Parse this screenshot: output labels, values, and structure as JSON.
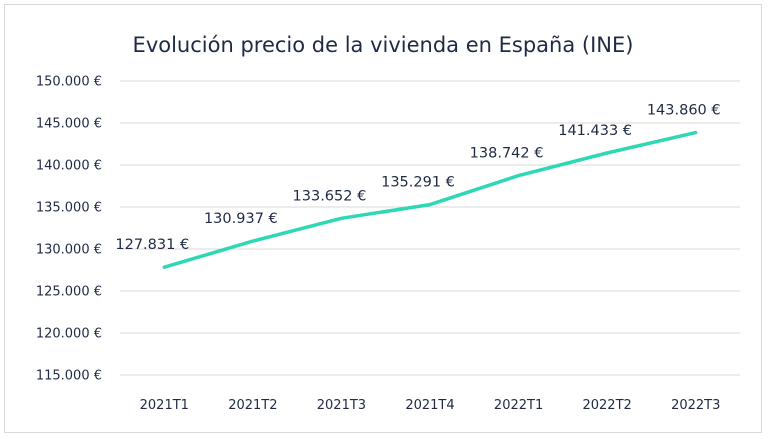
{
  "chart_data": {
    "type": "line",
    "title": "Evolución precio de la vivienda en España (INE)",
    "xlabel": "",
    "ylabel": "",
    "categories": [
      "2021T1",
      "2021T2",
      "2021T3",
      "2021T4",
      "2022T1",
      "2022T2",
      "2022T3"
    ],
    "series": [
      {
        "values": [
          127831,
          130937,
          133652,
          135291,
          138742,
          141433,
          143860
        ],
        "data_labels": [
          "127.831 €",
          "130.937 €",
          "133.652 €",
          "135.291 €",
          "138.742 €",
          "141.433 €",
          "143.860 €"
        ],
        "color": "#2ed8b4"
      }
    ],
    "ylim": [
      115000,
      150000
    ],
    "yticks": [
      150000,
      145000,
      140000,
      135000,
      130000,
      125000,
      120000,
      115000
    ],
    "ytick_labels": [
      "150.000 €",
      "145.000 €",
      "140.000 €",
      "135.000 €",
      "130.000 €",
      "125.000 €",
      "120.000 €",
      "115.000 €"
    ],
    "grid": true,
    "legend": "none",
    "colors": {
      "line": "#2ed8b4",
      "grid": "#d9d9d9",
      "text": "#1f2a44"
    }
  }
}
